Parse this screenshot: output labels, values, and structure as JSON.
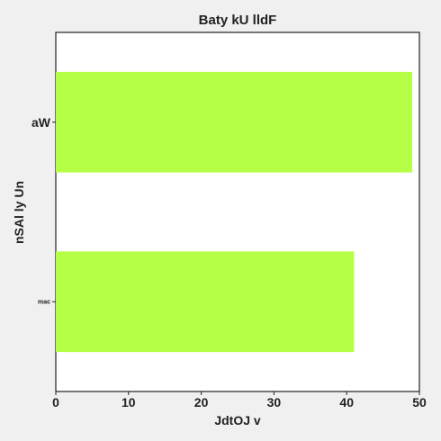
{
  "chart_data": {
    "type": "bar",
    "orientation": "horizontal",
    "title": "Baty  kU  lldF",
    "xlabel": "JdtOJ v",
    "ylabel": "nSAl  ly Un",
    "categories": [
      "mac",
      "aW"
    ],
    "values": [
      41,
      49
    ],
    "xlim": [
      0,
      50
    ],
    "xticks": [
      0,
      10,
      20,
      30,
      40,
      50
    ],
    "bar_color": "#b5ff46",
    "grid": false,
    "legend": "none"
  }
}
